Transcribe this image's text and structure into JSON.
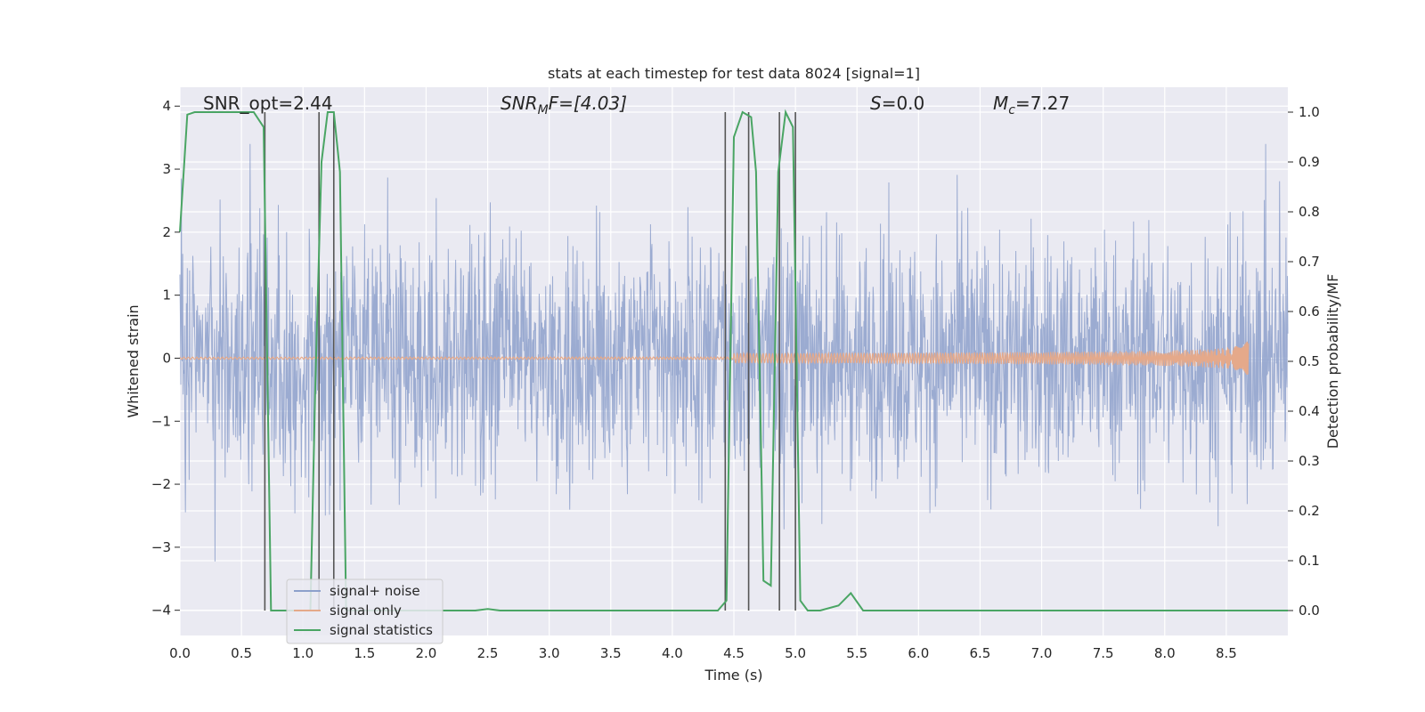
{
  "chart_data": {
    "type": "line",
    "title": "stats at each timestep for test data 8024 [signal=1]",
    "xlabel": "Time (s)",
    "ylabel_left": "Whitened strain",
    "ylabel_right": "Detection probability/MF",
    "xlim": [
      0,
      9.0
    ],
    "ylim_left": [
      -4.4,
      4.3
    ],
    "ylim_right": [
      -0.05,
      1.05
    ],
    "xticks": [
      0.0,
      0.5,
      1.0,
      1.5,
      2.0,
      2.5,
      3.0,
      3.5,
      4.0,
      4.5,
      5.0,
      5.5,
      6.0,
      6.5,
      7.0,
      7.5,
      8.0,
      8.5
    ],
    "yticks_left": [
      -4,
      -3,
      -2,
      -1,
      0,
      1,
      2,
      3,
      4
    ],
    "yticks_right": [
      0.0,
      0.1,
      0.2,
      0.3,
      0.4,
      0.5,
      0.6,
      0.7,
      0.8,
      0.9,
      1.0
    ],
    "grid": true,
    "legend_position": "lower-left",
    "annotations": {
      "snr_opt": "SNR_opt=2.44",
      "snr_mf_main": "SNR",
      "snr_mf_sub": "M",
      "snr_mf_rest": "F=[4.03]",
      "s_main": "S",
      "s_rest": "=0.0",
      "mc_main": "M",
      "mc_sub": "c",
      "mc_rest": "=7.27"
    },
    "series": [
      {
        "name": "signal+ noise",
        "color": "#8da0cb",
        "axis": "left",
        "style": "dense noise, roughly within ±2.2 with spikes to about ±3.6",
        "x_range": [
          0,
          9.0
        ]
      },
      {
        "name": "signal only",
        "color": "#e5a98a",
        "axis": "left",
        "style": "chirp growing from 0 to about ±0.3",
        "x_range": [
          0,
          8.68
        ],
        "peak_amplitude": 0.3
      },
      {
        "name": "signal statistics",
        "color": "#4aa564",
        "axis": "right",
        "x": [
          0.0,
          0.06,
          0.12,
          0.2,
          0.3,
          0.4,
          0.5,
          0.6,
          0.68,
          0.74,
          0.8,
          0.9,
          1.0,
          1.06,
          1.1,
          1.15,
          1.2,
          1.25,
          1.3,
          1.35,
          1.4,
          1.5,
          2.0,
          2.4,
          2.5,
          2.6,
          3.0,
          3.5,
          4.0,
          4.37,
          4.44,
          4.5,
          4.57,
          4.64,
          4.68,
          4.74,
          4.8,
          4.86,
          4.92,
          4.98,
          5.04,
          5.1,
          5.2,
          5.35,
          5.45,
          5.55,
          5.7,
          6.0,
          7.0,
          8.0,
          9.0
        ],
        "y": [
          0.76,
          0.995,
          1.0,
          1.0,
          1.0,
          1.0,
          1.0,
          1.0,
          0.97,
          0.0,
          0.0,
          0.0,
          0.0,
          0.0,
          0.45,
          0.9,
          1.0,
          1.0,
          0.88,
          0.0,
          0.0,
          0.0,
          0.0,
          0.0,
          0.003,
          0.0,
          0.0,
          0.0,
          0.0,
          0.0,
          0.02,
          0.95,
          1.0,
          0.99,
          0.88,
          0.06,
          0.05,
          0.88,
          1.0,
          0.97,
          0.02,
          0.0,
          0.0,
          0.01,
          0.035,
          0.0,
          0.0,
          0.0,
          0.0,
          0.0,
          0.0
        ]
      }
    ],
    "vlines_x": [
      0.69,
      1.13,
      1.25,
      4.43,
      4.62,
      4.87,
      5.0
    ],
    "vlines_color": "#555555"
  }
}
